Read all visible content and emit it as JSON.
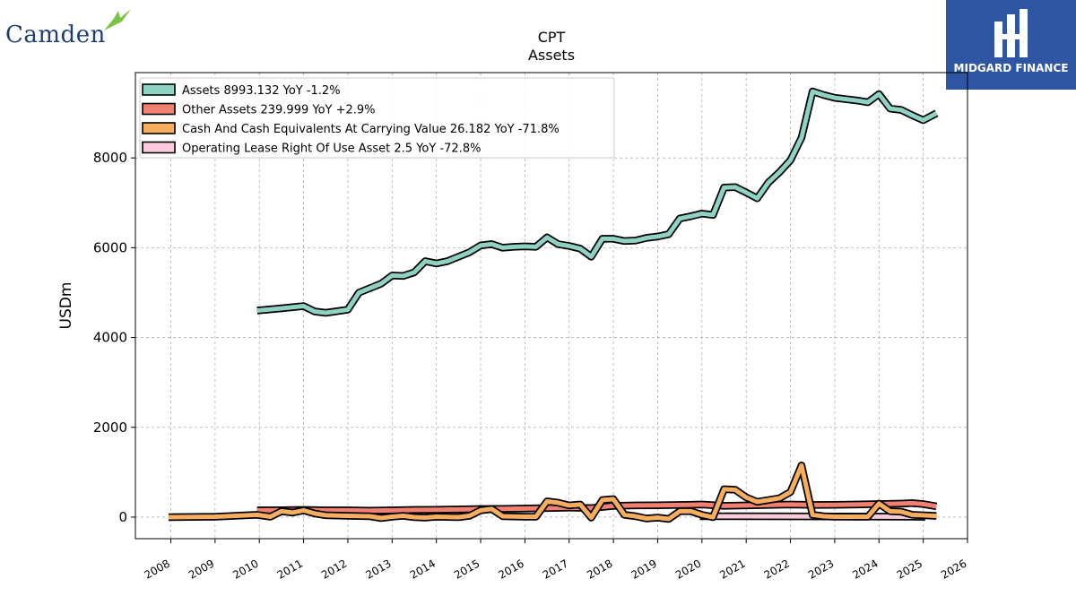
{
  "logos": {
    "left_text": "Camden",
    "right_text": "MIDGARD FINANCE"
  },
  "chart_data": {
    "type": "line",
    "title": "CPT",
    "subtitle": "Assets",
    "ylabel": "USDm",
    "xlabel": "",
    "xlim": [
      2007.2,
      2026.0
    ],
    "ylim": [
      -480,
      9900
    ],
    "yticks": [
      0,
      2000,
      4000,
      6000,
      8000
    ],
    "ytick_labels": [
      "0",
      "2000",
      "4000",
      "6000",
      "8000"
    ],
    "xticks": [
      2008,
      2009,
      2010,
      2011,
      2012,
      2013,
      2014,
      2015,
      2016,
      2017,
      2018,
      2019,
      2020,
      2021,
      2022,
      2023,
      2024,
      2025,
      2026
    ],
    "grid": true,
    "legend_position": "top-left",
    "series": [
      {
        "name": "Operating Lease Right Of Use Asset",
        "legend_label": "Operating Lease Right Of Use Asset  2.5 YoY -72.8%",
        "color": "#f9c9dc",
        "points": [
          [
            2019.95,
            20
          ],
          [
            2020.2,
            20
          ],
          [
            2021.0,
            19
          ],
          [
            2022.0,
            17
          ],
          [
            2023.0,
            14
          ],
          [
            2024.0,
            11
          ],
          [
            2025.0,
            8
          ],
          [
            2025.05,
            2.5
          ]
        ]
      },
      {
        "name": "Other Assets",
        "legend_label": "Other Assets  239.999 YoY +2.9%",
        "color": "#f28070",
        "points": [
          [
            2009.95,
            150
          ],
          [
            2010.5,
            155
          ],
          [
            2011.0,
            160
          ],
          [
            2011.5,
            150
          ],
          [
            2012.0,
            150
          ],
          [
            2012.5,
            145
          ],
          [
            2013.0,
            150
          ],
          [
            2013.5,
            160
          ],
          [
            2014.0,
            165
          ],
          [
            2014.5,
            170
          ],
          [
            2015.0,
            180
          ],
          [
            2015.5,
            185
          ],
          [
            2016.0,
            190
          ],
          [
            2016.5,
            200
          ],
          [
            2017.0,
            210
          ],
          [
            2017.5,
            200
          ],
          [
            2018.0,
            250
          ],
          [
            2018.5,
            260
          ],
          [
            2019.0,
            265
          ],
          [
            2019.5,
            270
          ],
          [
            2020.0,
            280
          ],
          [
            2020.5,
            250
          ],
          [
            2021.0,
            260
          ],
          [
            2021.5,
            270
          ],
          [
            2022.0,
            280
          ],
          [
            2022.5,
            270
          ],
          [
            2023.0,
            275
          ],
          [
            2023.5,
            280
          ],
          [
            2024.0,
            290
          ],
          [
            2024.5,
            300
          ],
          [
            2024.75,
            310
          ],
          [
            2025.0,
            290
          ],
          [
            2025.3,
            240
          ]
        ]
      },
      {
        "name": "Cash And Cash Equivalents At Carrying Value",
        "legend_label": "Cash And Cash Equivalents At Carrying Value  26.182 YoY -71.8%",
        "color": "#f6ad5e",
        "points": [
          [
            2007.95,
            0
          ],
          [
            2009.0,
            10
          ],
          [
            2009.95,
            50
          ],
          [
            2010.25,
            10
          ],
          [
            2010.5,
            130
          ],
          [
            2010.75,
            100
          ],
          [
            2011.0,
            150
          ],
          [
            2011.25,
            80
          ],
          [
            2011.5,
            40
          ],
          [
            2012.0,
            30
          ],
          [
            2012.5,
            20
          ],
          [
            2012.75,
            -20
          ],
          [
            2013.0,
            10
          ],
          [
            2013.25,
            30
          ],
          [
            2013.5,
            0
          ],
          [
            2013.75,
            -10
          ],
          [
            2014.0,
            10
          ],
          [
            2014.5,
            0
          ],
          [
            2014.75,
            30
          ],
          [
            2015.0,
            150
          ],
          [
            2015.25,
            180
          ],
          [
            2015.5,
            20
          ],
          [
            2016.0,
            10
          ],
          [
            2016.25,
            10
          ],
          [
            2016.5,
            350
          ],
          [
            2016.75,
            320
          ],
          [
            2017.0,
            260
          ],
          [
            2017.25,
            280
          ],
          [
            2017.5,
            -10
          ],
          [
            2017.75,
            380
          ],
          [
            2018.0,
            400
          ],
          [
            2018.25,
            50
          ],
          [
            2018.5,
            20
          ],
          [
            2018.75,
            -30
          ],
          [
            2019.0,
            -10
          ],
          [
            2019.25,
            -40
          ],
          [
            2019.5,
            130
          ],
          [
            2019.75,
            130
          ],
          [
            2020.0,
            50
          ],
          [
            2020.25,
            0
          ],
          [
            2020.5,
            620
          ],
          [
            2020.75,
            610
          ],
          [
            2021.0,
            440
          ],
          [
            2021.25,
            340
          ],
          [
            2021.5,
            380
          ],
          [
            2021.75,
            420
          ],
          [
            2022.0,
            560
          ],
          [
            2022.25,
            1150
          ],
          [
            2022.5,
            50
          ],
          [
            2022.75,
            20
          ],
          [
            2023.0,
            10
          ],
          [
            2023.5,
            10
          ],
          [
            2023.75,
            10
          ],
          [
            2024.0,
            300
          ],
          [
            2024.25,
            130
          ],
          [
            2024.5,
            120
          ],
          [
            2024.75,
            50
          ],
          [
            2025.0,
            40
          ],
          [
            2025.3,
            26.182
          ]
        ]
      },
      {
        "name": "Assets",
        "legend_label": "Assets  8993.132 YoY -1.2%",
        "color": "#8ed2c3",
        "points": [
          [
            2009.95,
            4600
          ],
          [
            2010.5,
            4650
          ],
          [
            2011.0,
            4700
          ],
          [
            2011.25,
            4580
          ],
          [
            2011.5,
            4550
          ],
          [
            2012.0,
            4620
          ],
          [
            2012.25,
            5000
          ],
          [
            2012.5,
            5100
          ],
          [
            2012.75,
            5200
          ],
          [
            2013.0,
            5380
          ],
          [
            2013.25,
            5370
          ],
          [
            2013.5,
            5450
          ],
          [
            2013.75,
            5700
          ],
          [
            2014.0,
            5650
          ],
          [
            2014.25,
            5700
          ],
          [
            2014.5,
            5800
          ],
          [
            2014.75,
            5900
          ],
          [
            2015.0,
            6050
          ],
          [
            2015.25,
            6080
          ],
          [
            2015.5,
            6000
          ],
          [
            2015.75,
            6020
          ],
          [
            2016.0,
            6030
          ],
          [
            2016.25,
            6020
          ],
          [
            2016.5,
            6230
          ],
          [
            2016.75,
            6080
          ],
          [
            2017.0,
            6040
          ],
          [
            2017.25,
            5980
          ],
          [
            2017.5,
            5800
          ],
          [
            2017.75,
            6200
          ],
          [
            2018.0,
            6200
          ],
          [
            2018.25,
            6150
          ],
          [
            2018.5,
            6160
          ],
          [
            2018.75,
            6220
          ],
          [
            2019.0,
            6250
          ],
          [
            2019.25,
            6300
          ],
          [
            2019.5,
            6650
          ],
          [
            2019.75,
            6700
          ],
          [
            2020.0,
            6760
          ],
          [
            2020.25,
            6730
          ],
          [
            2020.5,
            7340
          ],
          [
            2020.75,
            7350
          ],
          [
            2021.0,
            7230
          ],
          [
            2021.25,
            7100
          ],
          [
            2021.5,
            7450
          ],
          [
            2021.75,
            7680
          ],
          [
            2022.0,
            7950
          ],
          [
            2022.25,
            8450
          ],
          [
            2022.5,
            9480
          ],
          [
            2022.75,
            9400
          ],
          [
            2023.0,
            9340
          ],
          [
            2023.5,
            9280
          ],
          [
            2023.75,
            9240
          ],
          [
            2024.0,
            9420
          ],
          [
            2024.25,
            9100
          ],
          [
            2024.5,
            9070
          ],
          [
            2024.75,
            8950
          ],
          [
            2025.0,
            8840
          ],
          [
            2025.3,
            8993.132
          ]
        ]
      }
    ]
  }
}
